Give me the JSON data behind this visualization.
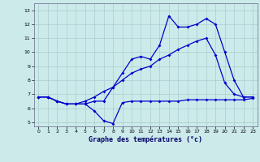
{
  "title": "Graphe des températures (°c)",
  "bg_color": "#cceaea",
  "grid_color": "#aacccc",
  "line_color": "#0000cc",
  "xlim": [
    -0.5,
    23.5
  ],
  "ylim": [
    4.7,
    13.5
  ],
  "yticks": [
    5,
    6,
    7,
    8,
    9,
    10,
    11,
    12,
    13
  ],
  "xticks": [
    0,
    1,
    2,
    3,
    4,
    5,
    6,
    7,
    8,
    9,
    10,
    11,
    12,
    13,
    14,
    15,
    16,
    17,
    18,
    19,
    20,
    21,
    22,
    23
  ],
  "series1_x": [
    0,
    1,
    2,
    3,
    4,
    5,
    6,
    7,
    8,
    9,
    10,
    11,
    12,
    13,
    14,
    15,
    16,
    17,
    18,
    19,
    20,
    21,
    22,
    23
  ],
  "series1_y": [
    6.8,
    6.8,
    6.5,
    6.3,
    6.3,
    6.3,
    5.8,
    5.1,
    4.9,
    6.4,
    6.5,
    6.5,
    6.5,
    6.5,
    6.5,
    6.5,
    6.6,
    6.6,
    6.6,
    6.6,
    6.6,
    6.6,
    6.6,
    6.7
  ],
  "series2_x": [
    0,
    1,
    2,
    3,
    4,
    5,
    6,
    7,
    8,
    9,
    10,
    11,
    12,
    13,
    14,
    15,
    16,
    17,
    18,
    19,
    20,
    21,
    22,
    23
  ],
  "series2_y": [
    6.8,
    6.8,
    6.5,
    6.3,
    6.3,
    6.3,
    6.5,
    6.5,
    7.5,
    8.5,
    9.5,
    9.7,
    9.5,
    10.5,
    12.6,
    11.8,
    11.8,
    12.0,
    12.4,
    12.0,
    10.0,
    8.0,
    6.8,
    6.8
  ],
  "series3_x": [
    0,
    1,
    2,
    3,
    4,
    5,
    6,
    7,
    8,
    9,
    10,
    11,
    12,
    13,
    14,
    15,
    16,
    17,
    18,
    19,
    20,
    21,
    22,
    23
  ],
  "series3_y": [
    6.8,
    6.8,
    6.5,
    6.3,
    6.3,
    6.5,
    6.8,
    7.2,
    7.5,
    8.0,
    8.5,
    8.8,
    9.0,
    9.5,
    9.8,
    10.2,
    10.5,
    10.8,
    11.0,
    9.8,
    7.8,
    7.0,
    6.8,
    6.8
  ],
  "marker": "D",
  "markersize": 2.0,
  "linewidth": 0.9
}
